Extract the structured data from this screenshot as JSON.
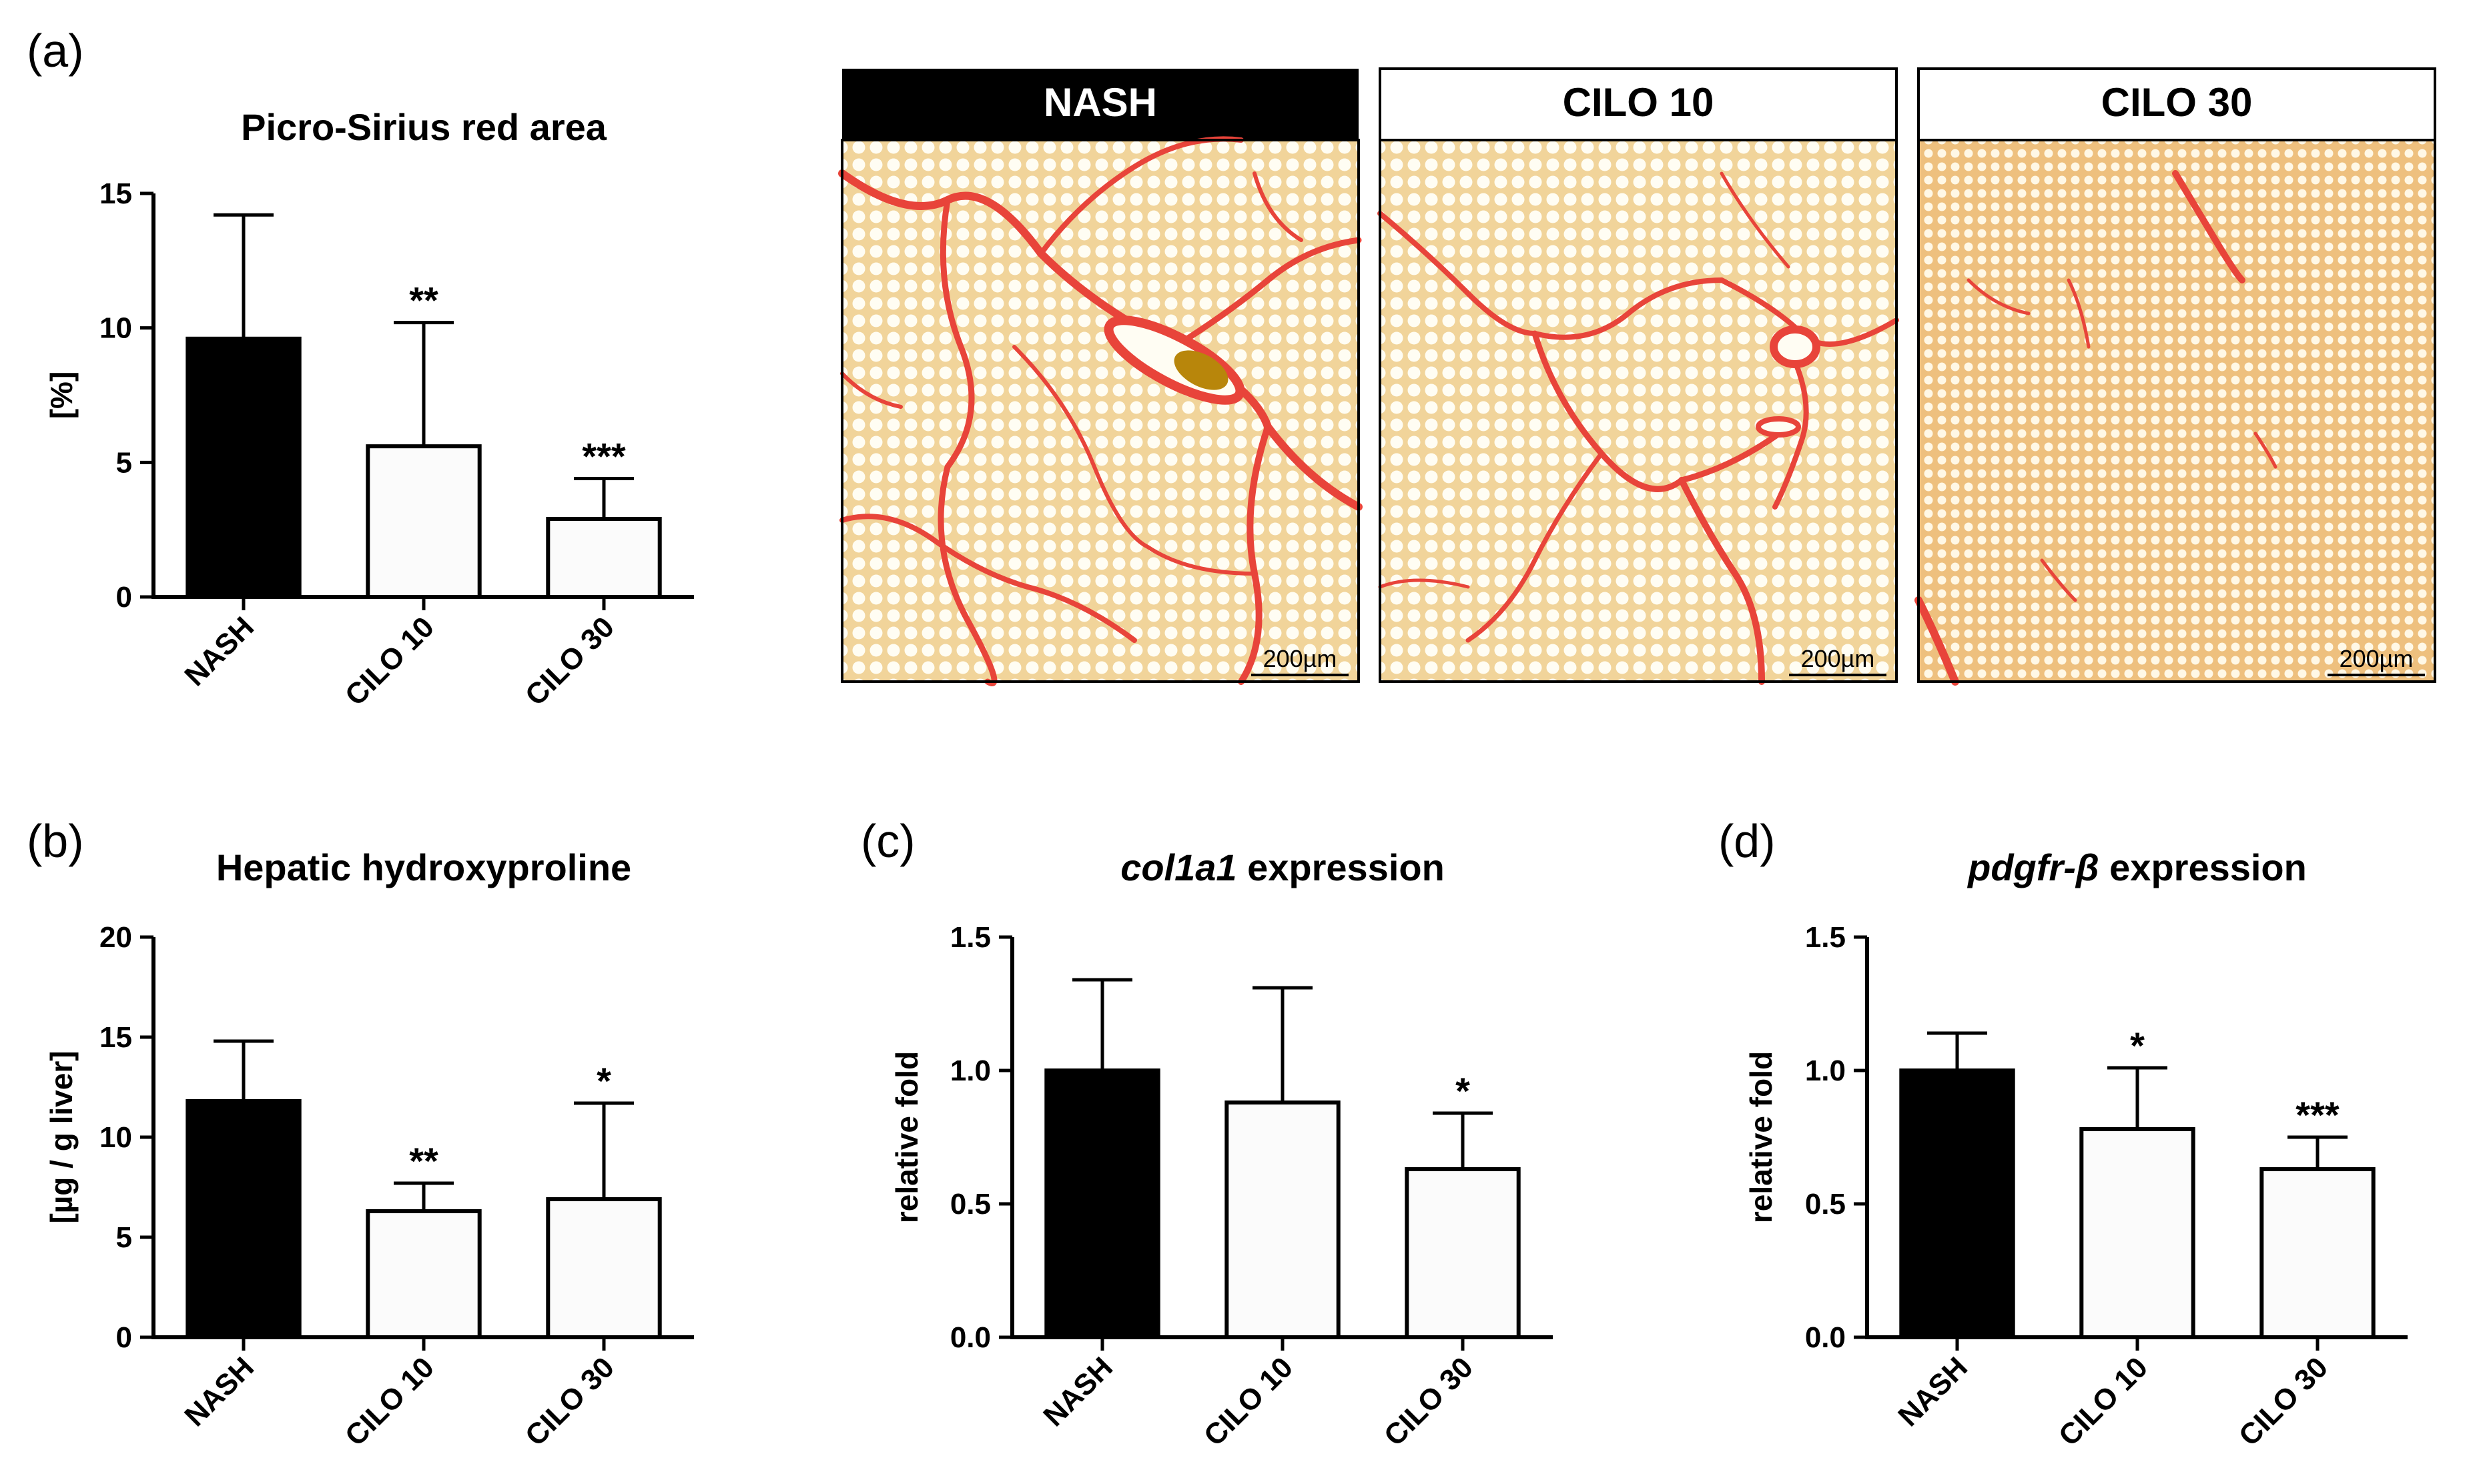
{
  "panel_labels": {
    "a": "(a)",
    "b": "(b)",
    "c": "(c)",
    "d": "(d)"
  },
  "colors": {
    "nash": "#000000",
    "cilo": "#fbfbfb",
    "tissue_bg": "#f1d49a",
    "fiber": "#e8443a",
    "header_dark": "#000000"
  },
  "micrographs": [
    {
      "title": "NASH",
      "scalebar": "200µm"
    },
    {
      "title": "CILO 10",
      "scalebar": "200µm"
    },
    {
      "title": "CILO 30",
      "scalebar": "200µm"
    }
  ],
  "chart_data": [
    {
      "type": "bar",
      "title": "Picro-Sirius red area",
      "ylabel": "[%]",
      "categories": [
        "NASH",
        "CILO 10",
        "CILO 30"
      ],
      "values": [
        9.6,
        5.6,
        2.9
      ],
      "errors": [
        4.6,
        4.6,
        1.5
      ],
      "significance": [
        "",
        "**",
        "***"
      ],
      "ylim": [
        0,
        15
      ],
      "yticks": [
        0,
        5,
        10,
        15
      ],
      "ytick_labels": [
        "0",
        "5",
        "10",
        "15"
      ]
    },
    {
      "type": "bar",
      "title": "Hepatic hydroxyproline",
      "ylabel": "[µg / g liver]",
      "categories": [
        "NASH",
        "CILO 10",
        "CILO 30"
      ],
      "values": [
        11.8,
        6.3,
        6.9
      ],
      "errors": [
        3.0,
        1.4,
        4.8
      ],
      "significance": [
        "",
        "**",
        "*"
      ],
      "ylim": [
        0,
        20
      ],
      "yticks": [
        0,
        5,
        10,
        15,
        20
      ],
      "ytick_labels": [
        "0",
        "5",
        "10",
        "15",
        "20"
      ]
    },
    {
      "type": "bar",
      "title_italic": "col1a1",
      "title_rest": " expression",
      "ylabel": "relative fold",
      "categories": [
        "NASH",
        "CILO 10",
        "CILO 30"
      ],
      "values": [
        1.0,
        0.88,
        0.63
      ],
      "errors": [
        0.34,
        0.43,
        0.21
      ],
      "significance": [
        "",
        "",
        "*"
      ],
      "ylim": [
        0,
        1.5
      ],
      "yticks": [
        0,
        0.5,
        1.0,
        1.5
      ],
      "ytick_labels": [
        "0.0",
        "0.5",
        "1.0",
        "1.5"
      ]
    },
    {
      "type": "bar",
      "title_italic": "pdgfr-β",
      "title_rest": " expression",
      "ylabel": "relative fold",
      "categories": [
        "NASH",
        "CILO 10",
        "CILO 30"
      ],
      "values": [
        1.0,
        0.78,
        0.63
      ],
      "errors": [
        0.14,
        0.23,
        0.12
      ],
      "significance": [
        "",
        "*",
        "***"
      ],
      "ylim": [
        0,
        1.5
      ],
      "yticks": [
        0,
        0.5,
        1.0,
        1.5
      ],
      "ytick_labels": [
        "0.0",
        "0.5",
        "1.0",
        "1.5"
      ]
    }
  ]
}
